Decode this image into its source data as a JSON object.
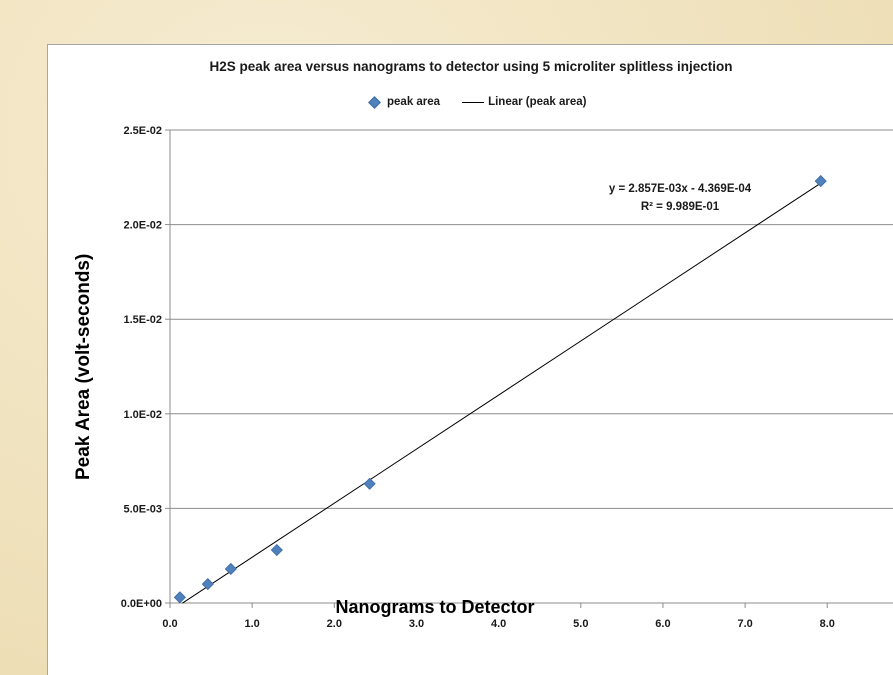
{
  "chart_data": {
    "type": "scatter",
    "title": "H2S peak area versus nanograms to detector using 5 microliter splitless injection",
    "xlabel": "Nanograms to Detector",
    "ylabel": "Peak Area (volt-seconds)",
    "xlim": [
      0,
      8.8
    ],
    "ylim": [
      0,
      0.025
    ],
    "x_ticks": [
      0,
      1,
      2,
      3,
      4,
      5,
      6,
      7,
      8
    ],
    "x_tick_labels": [
      "0.0",
      "1.0",
      "2.0",
      "3.0",
      "4.0",
      "5.0",
      "6.0",
      "7.0",
      "8.0"
    ],
    "y_ticks": [
      0,
      0.005,
      0.01,
      0.015,
      0.02,
      0.025
    ],
    "y_tick_labels": [
      "0.0E+00",
      "5.0E-03",
      "1.0E-02",
      "1.5E-02",
      "2.0E-02",
      "2.5E-02"
    ],
    "grid": "horizontal",
    "legend_position": "top",
    "series": [
      {
        "name": "peak area",
        "color": "#4f81bd",
        "marker": "diamond",
        "x": [
          0.12,
          0.46,
          0.74,
          1.3,
          2.43,
          7.92
        ],
        "y": [
          0.0003,
          0.001,
          0.0018,
          0.0028,
          0.0063,
          0.0223
        ]
      }
    ],
    "trendline": {
      "name": "Linear (peak area)",
      "color": "#000000",
      "slope": 0.002857,
      "intercept": -0.0004369,
      "x_range": [
        0.15,
        7.92
      ],
      "equation_label": "y = 2.857E-03x - 4.369E-04",
      "r2_label": "R² = 9.989E-01"
    }
  }
}
